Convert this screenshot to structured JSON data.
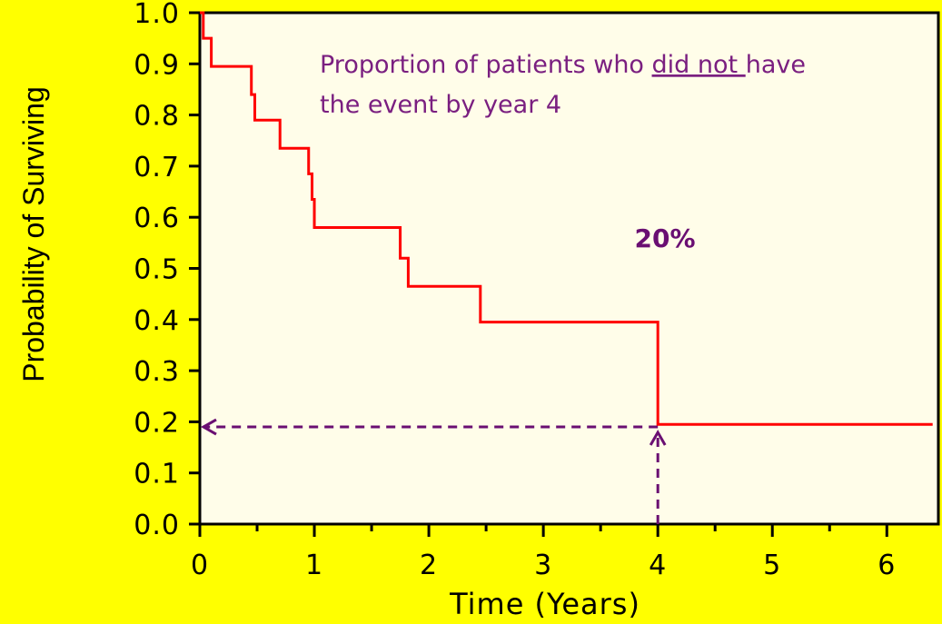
{
  "chart_data": {
    "type": "line",
    "step": true,
    "xlabel": "Time (Years)",
    "ylabel": "Probability of Surviving",
    "xlim": [
      0,
      6.45
    ],
    "ylim": [
      0,
      1.0
    ],
    "x_ticks": [
      "0",
      "1",
      "2",
      "3",
      "4",
      "5",
      "6"
    ],
    "y_ticks": [
      "0.0",
      "0.1",
      "0.2",
      "0.3",
      "0.4",
      "0.5",
      "0.6",
      "0.7",
      "0.8",
      "0.9",
      "1.0"
    ],
    "series": [
      {
        "color": "#ff0000",
        "x": [
          0,
          0.03,
          0.1,
          0.45,
          0.48,
          0.7,
          0.95,
          0.98,
          1.0,
          1.75,
          1.82,
          2.45,
          4.0,
          6.4
        ],
        "y": [
          1.0,
          0.95,
          0.895,
          0.84,
          0.79,
          0.735,
          0.685,
          0.635,
          0.58,
          0.52,
          0.465,
          0.395,
          0.195,
          0.195
        ]
      }
    ],
    "annotations": {
      "line1_before": "Proportion of patients who ",
      "line1_underlined": "did not ",
      "line1_after": "have",
      "line2": "the event by year 4",
      "percent": "20%",
      "marker_x": 4,
      "marker_y": 0.19
    },
    "colors": {
      "background": "#ffff00",
      "plot_background": "#fffde9",
      "curve": "#ff0000",
      "annotation": "#7a1f80",
      "arrows": "#6a0f72"
    }
  }
}
